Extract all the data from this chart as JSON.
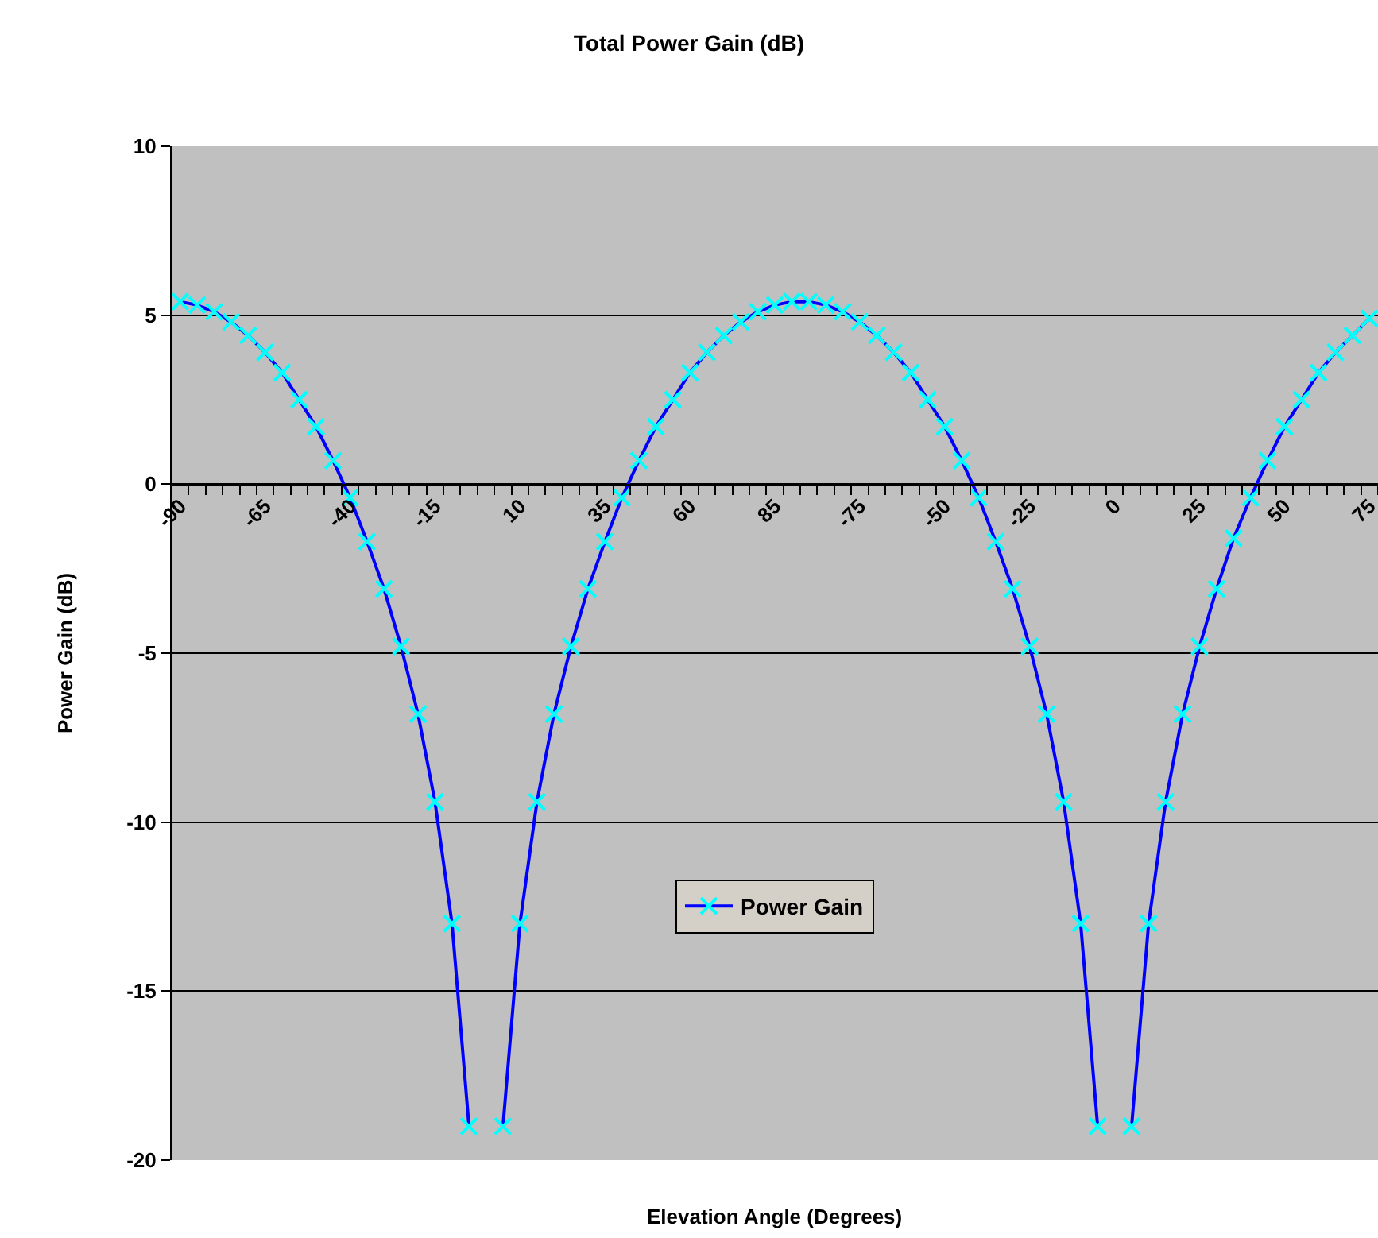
{
  "chart_data": {
    "type": "line",
    "title": "Total Power Gain (dB)",
    "xlabel": "Elevation Angle (Degrees)",
    "ylabel": "Power Gain (dB)",
    "categories": [
      "-90",
      null,
      null,
      null,
      null,
      "-65",
      null,
      null,
      null,
      null,
      "-40",
      null,
      null,
      null,
      null,
      "-15",
      null,
      null,
      null,
      null,
      "10",
      null,
      null,
      null,
      null,
      "35",
      null,
      null,
      null,
      null,
      "60",
      null,
      null,
      null,
      null,
      "85",
      null,
      null,
      null,
      null,
      "-75",
      null,
      null,
      null,
      null,
      "-50",
      null,
      null,
      null,
      null,
      "-25",
      null,
      null,
      null,
      null,
      "0",
      null,
      null,
      null,
      null,
      "25",
      null,
      null,
      null,
      null,
      "50",
      null,
      null,
      null,
      null,
      "75"
    ],
    "series": [
      {
        "name": "Power Gain",
        "color": "#0000ff",
        "colors": [
          "#00ffff",
          "#00ffff",
          "#00ffff",
          "#00ffff",
          "#00ffff",
          "#00ffff",
          "#00ffff",
          "#00ffff",
          "#00ffff",
          "#00ffff",
          "#00ffff",
          "#00ffff",
          "#00ffff",
          "#00ffff",
          "#00ffff",
          "#00ffff",
          "#00ffff",
          "#00ffff",
          "#00ffff",
          "#00ffff",
          "#00ffff",
          "#00ffff",
          "#00ffff",
          "#00ffff",
          "#00ffff",
          "#00ffff",
          "#00ffff",
          "#00ffff",
          "#00ffff",
          "#00ffff",
          "#00ffff",
          "#00ffff",
          "#00ffff",
          "#00ffff",
          "#00ffff",
          "#00ffff",
          "#00ffff",
          "#00ffff",
          "#00ffff",
          "#00ffff",
          "#00ffff",
          "#00ffff",
          "#00ffff",
          "#00ffff",
          "#00ffff",
          "#00ffff",
          "#00ffff",
          "#00ffff",
          "#00ffff",
          "#00ffff",
          "#00ffff",
          "#00ffff",
          "#00ffff",
          "#00ffff",
          "#00ffff",
          "#00ffff",
          "#00ffff",
          "#00ffff",
          "#00ffff",
          "#00ffff",
          "#00ffff",
          "#00ffff",
          "#00ffff",
          "#00ffff",
          "#00ffff",
          "#00ffff",
          "#00ffff",
          "#00ffff",
          "#00ffff",
          "#00ffff",
          "#00ffff"
        ],
        "values": [
          5.4,
          5.3,
          5.1,
          4.8,
          4.4,
          3.9,
          3.3,
          2.5,
          1.7,
          0.7,
          -0.4,
          -1.7,
          -3.1,
          -4.8,
          -6.8,
          -9.4,
          -13.0,
          -19.0,
          null,
          -19.0,
          -13.0,
          -9.4,
          -6.8,
          -4.8,
          -3.1,
          -1.7,
          -0.4,
          0.7,
          1.7,
          2.5,
          3.3,
          3.9,
          4.4,
          4.8,
          5.1,
          5.3,
          5.4,
          5.4,
          5.3,
          5.1,
          4.8,
          4.4,
          3.9,
          3.3,
          2.5,
          1.7,
          0.7,
          -0.4,
          -1.7,
          -3.1,
          -4.8,
          -6.8,
          -9.4,
          -13.0,
          -19.0,
          null,
          -19.0,
          -13.0,
          -9.4,
          -6.8,
          -4.8,
          -3.1,
          -1.6,
          -0.4,
          0.7,
          1.7,
          2.5,
          3.3,
          3.9,
          4.4,
          4.9
        ]
      }
    ],
    "ylim": [
      -20,
      10
    ],
    "yticks": [
      -20,
      -15,
      -10,
      -5,
      0,
      5,
      10
    ],
    "grid": "y",
    "legend": "bottom",
    "marker": "cross",
    "line_style": "solid"
  }
}
